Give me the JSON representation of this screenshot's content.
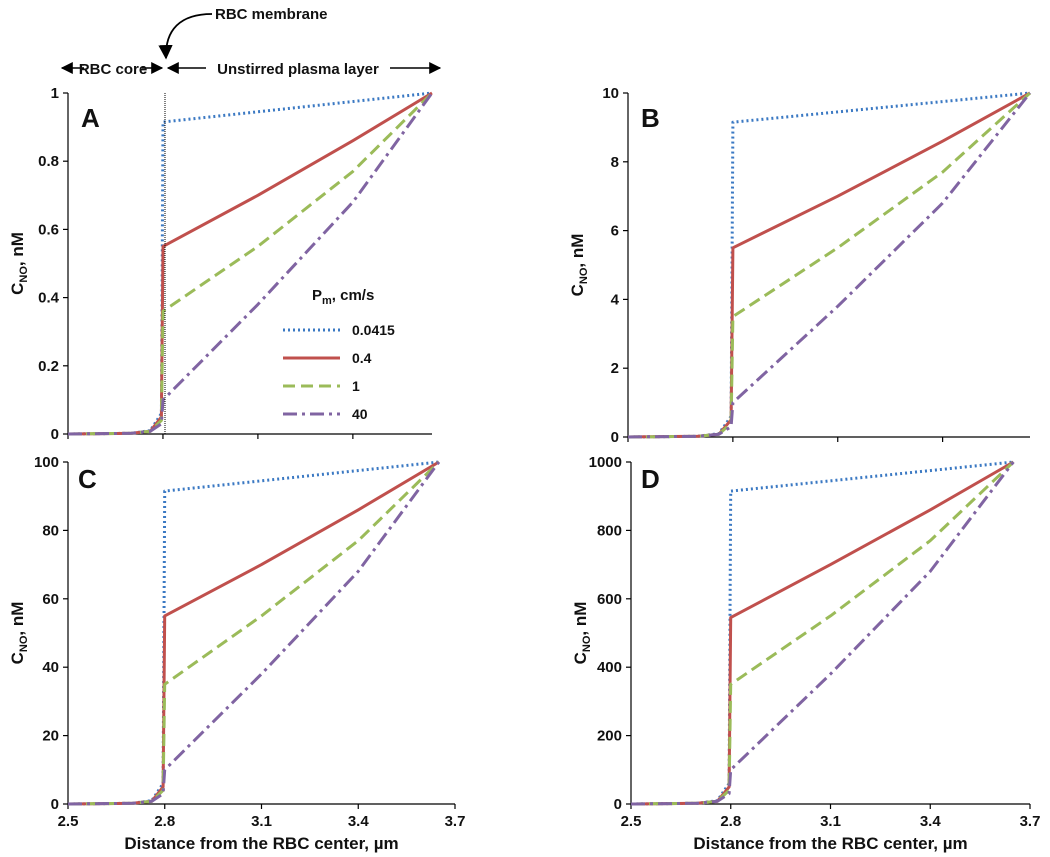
{
  "chart_data": [
    {
      "type": "line",
      "panel": "A",
      "ylabel": "C_NO, nM",
      "xlabel": "",
      "xlim": [
        2.5,
        3.7
      ],
      "ylim": [
        0,
        1
      ],
      "yticks": [
        "0",
        "0.2",
        "0.4",
        "0.6",
        "0.8",
        "1"
      ],
      "xticks": [],
      "series": [
        {
          "name": "0.0415",
          "points": [
            [
              2.5,
              0
            ],
            [
              2.7,
              0.002
            ],
            [
              2.76,
              0.01
            ],
            [
              2.795,
              0.06
            ],
            [
              2.8,
              0.915
            ],
            [
              3.65,
              1.0
            ]
          ]
        },
        {
          "name": "0.4",
          "points": [
            [
              2.5,
              0
            ],
            [
              2.7,
              0.002
            ],
            [
              2.76,
              0.008
            ],
            [
              2.795,
              0.05
            ],
            [
              2.8,
              0.55
            ],
            [
              3.1,
              0.7
            ],
            [
              3.4,
              0.86
            ],
            [
              3.65,
              1.0
            ]
          ]
        },
        {
          "name": "1",
          "points": [
            [
              2.5,
              0
            ],
            [
              2.7,
              0.002
            ],
            [
              2.76,
              0.008
            ],
            [
              2.795,
              0.04
            ],
            [
              2.8,
              0.36
            ],
            [
              3.1,
              0.55
            ],
            [
              3.4,
              0.77
            ],
            [
              3.65,
              1.0
            ]
          ]
        },
        {
          "name": "40",
          "points": [
            [
              2.5,
              0
            ],
            [
              2.7,
              0.002
            ],
            [
              2.76,
              0.008
            ],
            [
              2.795,
              0.03
            ],
            [
              2.8,
              0.1
            ],
            [
              3.1,
              0.38
            ],
            [
              3.4,
              0.68
            ],
            [
              3.65,
              1.0
            ]
          ]
        }
      ]
    },
    {
      "type": "line",
      "panel": "B",
      "ylabel": "C_NO, nM",
      "xlabel": "",
      "xlim": [
        2.5,
        3.7
      ],
      "ylim": [
        0,
        10
      ],
      "yticks": [
        "0",
        "2",
        "4",
        "6",
        "8",
        "10"
      ],
      "xticks": [],
      "series": [
        {
          "name": "0.0415",
          "points": [
            [
              2.5,
              0
            ],
            [
              2.7,
              0.02
            ],
            [
              2.76,
              0.1
            ],
            [
              2.795,
              0.6
            ],
            [
              2.8,
              9.15
            ],
            [
              3.65,
              10
            ]
          ]
        },
        {
          "name": "0.4",
          "points": [
            [
              2.5,
              0
            ],
            [
              2.7,
              0.02
            ],
            [
              2.76,
              0.08
            ],
            [
              2.795,
              0.5
            ],
            [
              2.8,
              5.5
            ],
            [
              3.1,
              7.0
            ],
            [
              3.4,
              8.6
            ],
            [
              3.65,
              10
            ]
          ]
        },
        {
          "name": "1",
          "points": [
            [
              2.5,
              0
            ],
            [
              2.7,
              0.02
            ],
            [
              2.76,
              0.08
            ],
            [
              2.795,
              0.4
            ],
            [
              2.8,
              3.5
            ],
            [
              3.1,
              5.5
            ],
            [
              3.4,
              7.7
            ],
            [
              3.65,
              10
            ]
          ]
        },
        {
          "name": "40",
          "points": [
            [
              2.5,
              0
            ],
            [
              2.7,
              0.02
            ],
            [
              2.76,
              0.08
            ],
            [
              2.795,
              0.3
            ],
            [
              2.8,
              1.0
            ],
            [
              3.1,
              3.8
            ],
            [
              3.4,
              6.8
            ],
            [
              3.65,
              10
            ]
          ]
        }
      ]
    },
    {
      "type": "line",
      "panel": "C",
      "ylabel": "C_NO, nM",
      "xlabel": "Distance from the RBC center, µm",
      "xlim": [
        2.5,
        3.7
      ],
      "ylim": [
        0,
        100
      ],
      "yticks": [
        "0",
        "20",
        "40",
        "60",
        "80",
        "100"
      ],
      "xticks": [
        "2.5",
        "2.8",
        "3.1",
        "3.4",
        "3.7"
      ],
      "series": [
        {
          "name": "0.0415",
          "points": [
            [
              2.5,
              0
            ],
            [
              2.7,
              0.2
            ],
            [
              2.76,
              1
            ],
            [
              2.795,
              6
            ],
            [
              2.8,
              91.5
            ],
            [
              3.65,
              100
            ]
          ]
        },
        {
          "name": "0.4",
          "points": [
            [
              2.5,
              0
            ],
            [
              2.7,
              0.2
            ],
            [
              2.76,
              0.8
            ],
            [
              2.795,
              5
            ],
            [
              2.8,
              55
            ],
            [
              3.1,
              70
            ],
            [
              3.4,
              86
            ],
            [
              3.65,
              100
            ]
          ]
        },
        {
          "name": "1",
          "points": [
            [
              2.5,
              0
            ],
            [
              2.7,
              0.2
            ],
            [
              2.76,
              0.8
            ],
            [
              2.795,
              4
            ],
            [
              2.8,
              35
            ],
            [
              3.1,
              55
            ],
            [
              3.4,
              77
            ],
            [
              3.65,
              100
            ]
          ]
        },
        {
          "name": "40",
          "points": [
            [
              2.5,
              0
            ],
            [
              2.7,
              0.2
            ],
            [
              2.76,
              0.8
            ],
            [
              2.795,
              3
            ],
            [
              2.8,
              10
            ],
            [
              3.1,
              38
            ],
            [
              3.4,
              68
            ],
            [
              3.65,
              100
            ]
          ]
        }
      ]
    },
    {
      "type": "line",
      "panel": "D",
      "ylabel": "C_NO, nM",
      "xlabel": "Distance from the RBC center, µm",
      "xlim": [
        2.5,
        3.7
      ],
      "ylim": [
        0,
        1000
      ],
      "yticks": [
        "0",
        "200",
        "400",
        "600",
        "800",
        "1000"
      ],
      "xticks": [
        "2.5",
        "2.8",
        "3.1",
        "3.4",
        "3.7"
      ],
      "series": [
        {
          "name": "0.0415",
          "points": [
            [
              2.5,
              0
            ],
            [
              2.7,
              2
            ],
            [
              2.76,
              10
            ],
            [
              2.795,
              60
            ],
            [
              2.8,
              915
            ],
            [
              3.65,
              1000
            ]
          ]
        },
        {
          "name": "0.4",
          "points": [
            [
              2.5,
              0
            ],
            [
              2.7,
              2
            ],
            [
              2.76,
              8
            ],
            [
              2.795,
              50
            ],
            [
              2.8,
              545
            ],
            [
              3.1,
              700
            ],
            [
              3.4,
              860
            ],
            [
              3.65,
              1000
            ]
          ]
        },
        {
          "name": "1",
          "points": [
            [
              2.5,
              0
            ],
            [
              2.7,
              2
            ],
            [
              2.76,
              8
            ],
            [
              2.795,
              40
            ],
            [
              2.8,
              350
            ],
            [
              3.1,
              550
            ],
            [
              3.4,
              770
            ],
            [
              3.65,
              1000
            ]
          ]
        },
        {
          "name": "40",
          "points": [
            [
              2.5,
              0
            ],
            [
              2.7,
              2
            ],
            [
              2.76,
              8
            ],
            [
              2.795,
              30
            ],
            [
              2.8,
              100
            ],
            [
              3.1,
              380
            ],
            [
              3.4,
              680
            ],
            [
              3.65,
              1000
            ]
          ]
        }
      ]
    }
  ],
  "legend": {
    "title_main": "P",
    "title_sub": "m",
    "title_rest": ", cm/s",
    "entries": [
      {
        "name": "0.0415",
        "color": "#3b79c3",
        "dash": "dotted"
      },
      {
        "name": "0.4",
        "color": "#c0504d",
        "dash": "solid"
      },
      {
        "name": "1",
        "color": "#9bbb59",
        "dash": "dashed"
      },
      {
        "name": "40",
        "color": "#8064a2",
        "dash": "dashdot"
      }
    ]
  },
  "annotations": {
    "membrane": "RBC membrane",
    "core": "RBC core",
    "plasma": "Unstirred plasma layer"
  },
  "axis": {
    "ylabel_main": "C",
    "ylabel_sub": "NO",
    "ylabel_rest": ", nM"
  },
  "colors": {
    "0.0415": "#3b79c3",
    "0.4": "#c0504d",
    "1": "#9bbb59",
    "40": "#8064a2"
  }
}
